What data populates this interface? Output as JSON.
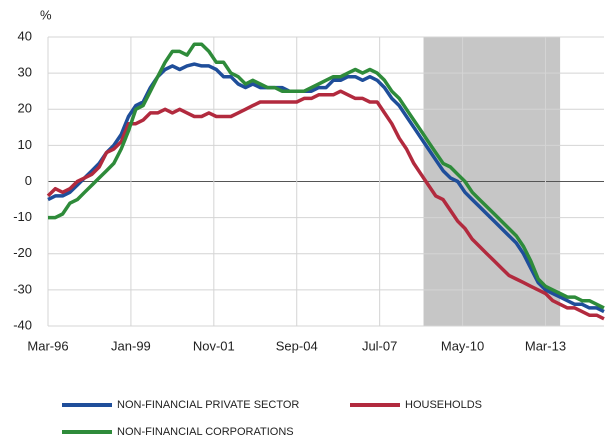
{
  "chart_data": {
    "type": "line",
    "y_unit_label": "%",
    "x": [
      "Mar-96",
      "Jun-96",
      "Sep-96",
      "Dec-96",
      "Mar-97",
      "Jun-97",
      "Sep-97",
      "Dec-97",
      "Mar-98",
      "Jun-98",
      "Sep-98",
      "Dec-98",
      "Mar-99",
      "Jun-99",
      "Sep-99",
      "Dec-99",
      "Mar-00",
      "Jun-00",
      "Sep-00",
      "Dec-00",
      "Mar-01",
      "Jun-01",
      "Sep-01",
      "Dec-01",
      "Mar-02",
      "Jun-02",
      "Sep-02",
      "Dec-02",
      "Mar-03",
      "Jun-03",
      "Sep-03",
      "Dec-03",
      "Mar-04",
      "Jun-04",
      "Sep-04",
      "Dec-04",
      "Mar-05",
      "Jun-05",
      "Sep-05",
      "Dec-05",
      "Mar-06",
      "Jun-06",
      "Sep-06",
      "Dec-06",
      "Mar-07",
      "Jun-07",
      "Sep-07",
      "Dec-07",
      "Mar-08",
      "Jun-08",
      "Sep-08",
      "Dec-08",
      "Mar-09",
      "Jun-09",
      "Sep-09",
      "Dec-09",
      "Mar-10",
      "Jun-10",
      "Sep-10",
      "Dec-10",
      "Mar-11",
      "Jun-11",
      "Sep-11",
      "Dec-11",
      "Mar-12",
      "Jun-12",
      "Sep-12",
      "Dec-12",
      "Mar-13",
      "Jun-13",
      "Sep-13",
      "Dec-13",
      "Mar-14",
      "Jun-14",
      "Sep-14",
      "Dec-14",
      "Mar-15"
    ],
    "series": [
      {
        "name": "NON-FINANCIAL PRIVATE SECTOR",
        "color": "#1f4e9a",
        "values": [
          -5,
          -4,
          -4,
          -3,
          -1,
          1,
          3,
          5,
          8,
          10,
          13,
          18,
          21,
          22,
          26,
          29,
          31,
          32,
          31,
          32,
          32.5,
          32,
          32,
          31,
          29,
          29,
          27,
          26,
          27,
          26,
          26,
          26,
          26,
          25,
          25,
          25,
          25,
          26,
          26,
          28,
          28,
          29,
          29,
          28,
          29,
          28,
          26,
          23,
          21,
          18,
          15,
          12,
          9,
          6,
          3,
          1,
          0,
          -3,
          -5,
          -7,
          -9,
          -11,
          -13,
          -15,
          -17,
          -20,
          -24,
          -28,
          -30,
          -31,
          -32,
          -33,
          -34,
          -34,
          -35,
          -35,
          -36
        ]
      },
      {
        "name": "HOUSEHOLDS",
        "color": "#b22a3e",
        "values": [
          -4,
          -2,
          -3,
          -2,
          0,
          1,
          2,
          4,
          8,
          9,
          11,
          16,
          16,
          17,
          19,
          19,
          20,
          19,
          20,
          19,
          18,
          18,
          19,
          18,
          18,
          18,
          19,
          20,
          21,
          22,
          22,
          22,
          22,
          22,
          22,
          23,
          23,
          24,
          24,
          24,
          25,
          24,
          23,
          23,
          22,
          22,
          19,
          16,
          12,
          9,
          5,
          2,
          -1,
          -4,
          -5,
          -8,
          -11,
          -13,
          -16,
          -18,
          -20,
          -22,
          -24,
          -26,
          -27,
          -28,
          -29,
          -30,
          -31,
          -33,
          -34,
          -35,
          -35,
          -36,
          -37,
          -37,
          -38
        ]
      },
      {
        "name": "NON-FINANCIAL CORPORATIONS",
        "color": "#2e8b3a",
        "values": [
          -10,
          -10,
          -9,
          -6,
          -5,
          -3,
          -1,
          1,
          3,
          5,
          9,
          14,
          20,
          21,
          25,
          29,
          33,
          36,
          36,
          35,
          38,
          38,
          36,
          33,
          33,
          30,
          29,
          27,
          28,
          27,
          26,
          26,
          25,
          25,
          25,
          25,
          26,
          27,
          28,
          29,
          29,
          30,
          31,
          30,
          31,
          30,
          28,
          25,
          23,
          20,
          17,
          14,
          11,
          8,
          5,
          4,
          2,
          0,
          -3,
          -5,
          -7,
          -9,
          -11,
          -13,
          -15,
          -18,
          -22,
          -27,
          -29,
          -30,
          -31,
          -32,
          -32,
          -33,
          -33,
          -34,
          -35
        ]
      }
    ],
    "xlim": [
      "Mar-96",
      "Mar-15"
    ],
    "xticks": [
      "Mar-96",
      "Jan-99",
      "Nov-01",
      "Sep-04",
      "Jul-07",
      "May-10",
      "Mar-13"
    ],
    "ylim": [
      -40,
      40
    ],
    "yticks": [
      -40,
      -30,
      -20,
      -10,
      0,
      10,
      20,
      30,
      40
    ],
    "shaded_range": [
      "Jan-09",
      "Sep-13"
    ],
    "grid": true,
    "legend": "bottom"
  }
}
